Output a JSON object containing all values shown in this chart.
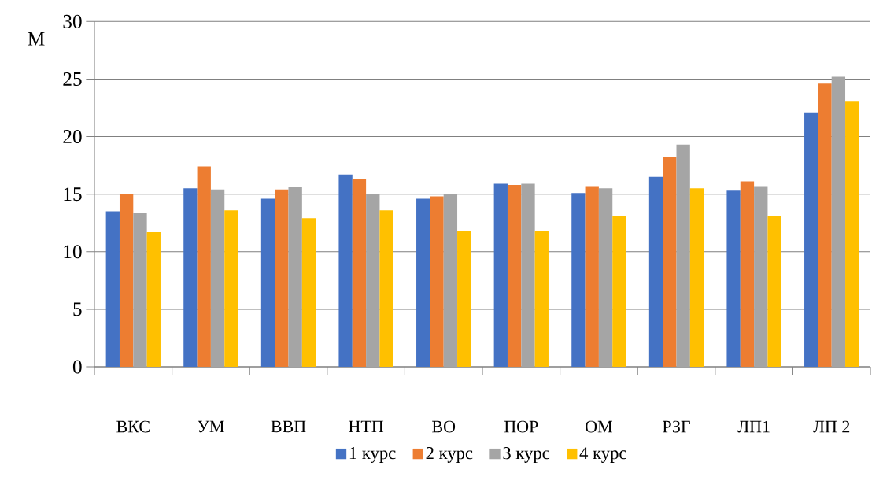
{
  "chart_data": {
    "type": "bar",
    "ylabel": "М",
    "categories": [
      "ВКС",
      "УМ",
      "ВВП",
      "НТП",
      "ВО",
      "ПОР",
      "ОМ",
      "РЗГ",
      "ЛП1",
      "ЛП 2"
    ],
    "series": [
      {
        "name": "1 курс",
        "color": "#4472c4",
        "values": [
          13.5,
          15.5,
          14.6,
          16.7,
          14.6,
          15.9,
          15.1,
          16.5,
          15.3,
          22.1
        ]
      },
      {
        "name": "2 курс",
        "color": "#ed7d31",
        "values": [
          15.0,
          17.4,
          15.4,
          16.3,
          14.8,
          15.8,
          15.7,
          18.2,
          16.1,
          24.6
        ]
      },
      {
        "name": "3 курс",
        "color": "#a5a5a5",
        "values": [
          13.4,
          15.4,
          15.6,
          15.0,
          15.0,
          15.9,
          15.5,
          19.3,
          15.7,
          25.2
        ]
      },
      {
        "name": "4 курс",
        "color": "#ffc000",
        "values": [
          11.7,
          13.6,
          12.9,
          13.6,
          11.8,
          11.8,
          13.1,
          15.5,
          13.1,
          23.1
        ]
      }
    ],
    "ylim": [
      0,
      30
    ],
    "yticks": [
      0,
      5,
      10,
      15,
      20,
      25,
      30
    ],
    "grid": "y",
    "legend": "bottom"
  }
}
